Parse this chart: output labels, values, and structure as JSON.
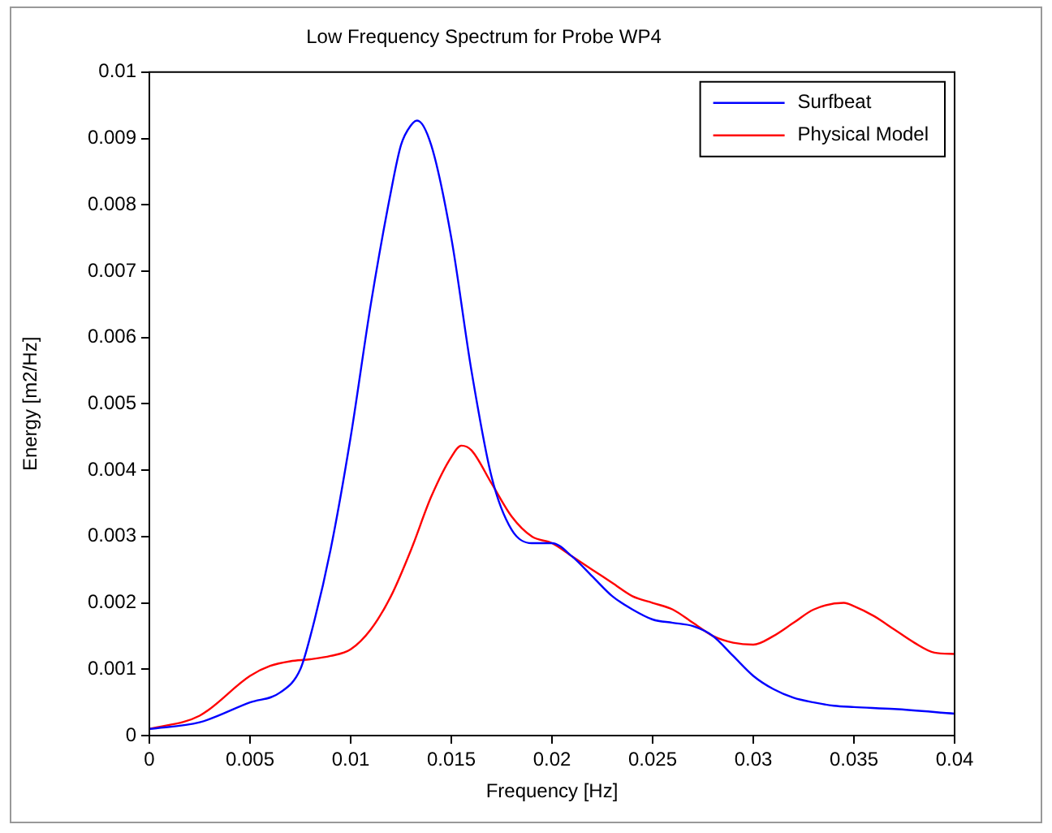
{
  "chart_data": {
    "type": "line",
    "title": "Low Frequency Spectrum for Probe WP4",
    "xlabel": "Frequency [Hz]",
    "ylabel": "Energy [m2/Hz]",
    "xlim": [
      0,
      0.04
    ],
    "xticks": [
      0,
      0.005,
      0.01,
      0.015,
      0.02,
      0.025,
      0.03,
      0.035,
      0.04
    ],
    "ylim": [
      0,
      0.01
    ],
    "yticks": [
      0,
      0.001,
      0.002,
      0.003,
      0.004,
      0.005,
      0.006,
      0.007,
      0.008,
      0.009,
      0.01
    ],
    "grid": false,
    "legend": "top right",
    "marker": "none",
    "line_style": "solid",
    "series": [
      {
        "name": "Surfbeat",
        "color": "#0000ff",
        "x": [
          0,
          0.0025,
          0.005,
          0.0065,
          0.0075,
          0.008,
          0.009,
          0.01,
          0.011,
          0.012,
          0.0125,
          0.013,
          0.0133,
          0.014,
          0.015,
          0.016,
          0.017,
          0.018,
          0.019,
          0.02,
          0.021,
          0.022,
          0.023,
          0.024,
          0.025,
          0.026,
          0.027,
          0.028,
          0.029,
          0.03,
          0.031,
          0.032,
          0.033,
          0.034,
          0.035,
          0.037,
          0.04
        ],
        "values": [
          0.0001,
          0.0002,
          0.0005,
          0.00065,
          0.001,
          0.0015,
          0.0028,
          0.0045,
          0.0065,
          0.0082,
          0.0089,
          0.0092,
          0.00927,
          0.0089,
          0.0075,
          0.0055,
          0.0039,
          0.0031,
          0.0029,
          0.0029,
          0.0027,
          0.0024,
          0.0021,
          0.0019,
          0.00175,
          0.0017,
          0.00165,
          0.0015,
          0.0012,
          0.0009,
          0.0007,
          0.00057,
          0.0005,
          0.00045,
          0.00043,
          0.0004,
          0.00033
        ]
      },
      {
        "name": "Physical Model",
        "color": "#ff0000",
        "x": [
          0,
          0.0025,
          0.005,
          0.006,
          0.007,
          0.008,
          0.009,
          0.01,
          0.011,
          0.012,
          0.013,
          0.014,
          0.015,
          0.0155,
          0.016,
          0.017,
          0.018,
          0.019,
          0.02,
          0.021,
          0.022,
          0.023,
          0.024,
          0.025,
          0.026,
          0.027,
          0.028,
          0.029,
          0.03,
          0.031,
          0.032,
          0.033,
          0.0345,
          0.035,
          0.036,
          0.037,
          0.038,
          0.039,
          0.04
        ],
        "values": [
          0.0001,
          0.0003,
          0.0009,
          0.00105,
          0.00112,
          0.00115,
          0.0012,
          0.0013,
          0.0016,
          0.0021,
          0.0028,
          0.0036,
          0.0042,
          0.00437,
          0.0043,
          0.0038,
          0.0033,
          0.003,
          0.0029,
          0.0027,
          0.0025,
          0.0023,
          0.0021,
          0.002,
          0.0019,
          0.0017,
          0.0015,
          0.0014,
          0.00137,
          0.0015,
          0.0017,
          0.0019,
          0.002,
          0.00195,
          0.0018,
          0.0016,
          0.0014,
          0.00125,
          0.00123
        ]
      }
    ]
  }
}
